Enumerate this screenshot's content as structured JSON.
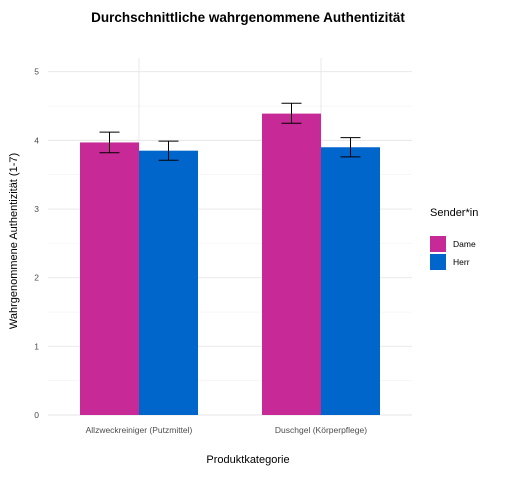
{
  "chart_data": {
    "type": "bar",
    "title": "Durchschnittliche wahrgenommene Authentizität",
    "xlabel": "Produktkategorie",
    "ylabel": "Wahrgenommene Authentizität (1-7)",
    "categories": [
      "Allzweckreiniger (Putzmittel)",
      "Duschgel (Körperpflege)"
    ],
    "ylim": [
      0,
      5.2
    ],
    "yticks": [
      0,
      1,
      2,
      3,
      4,
      5
    ],
    "grid": true,
    "legend": {
      "title": "Sender*in",
      "position": "right"
    },
    "series": [
      {
        "name": "Dame",
        "color": "#C72A96",
        "values": [
          3.97,
          4.39
        ],
        "error_low": [
          3.82,
          4.25
        ],
        "error_high": [
          4.12,
          4.54
        ]
      },
      {
        "name": "Herr",
        "color": "#0066CC",
        "values": [
          3.85,
          3.9
        ],
        "error_low": [
          3.71,
          3.76
        ],
        "error_high": [
          3.99,
          4.04
        ]
      }
    ]
  }
}
